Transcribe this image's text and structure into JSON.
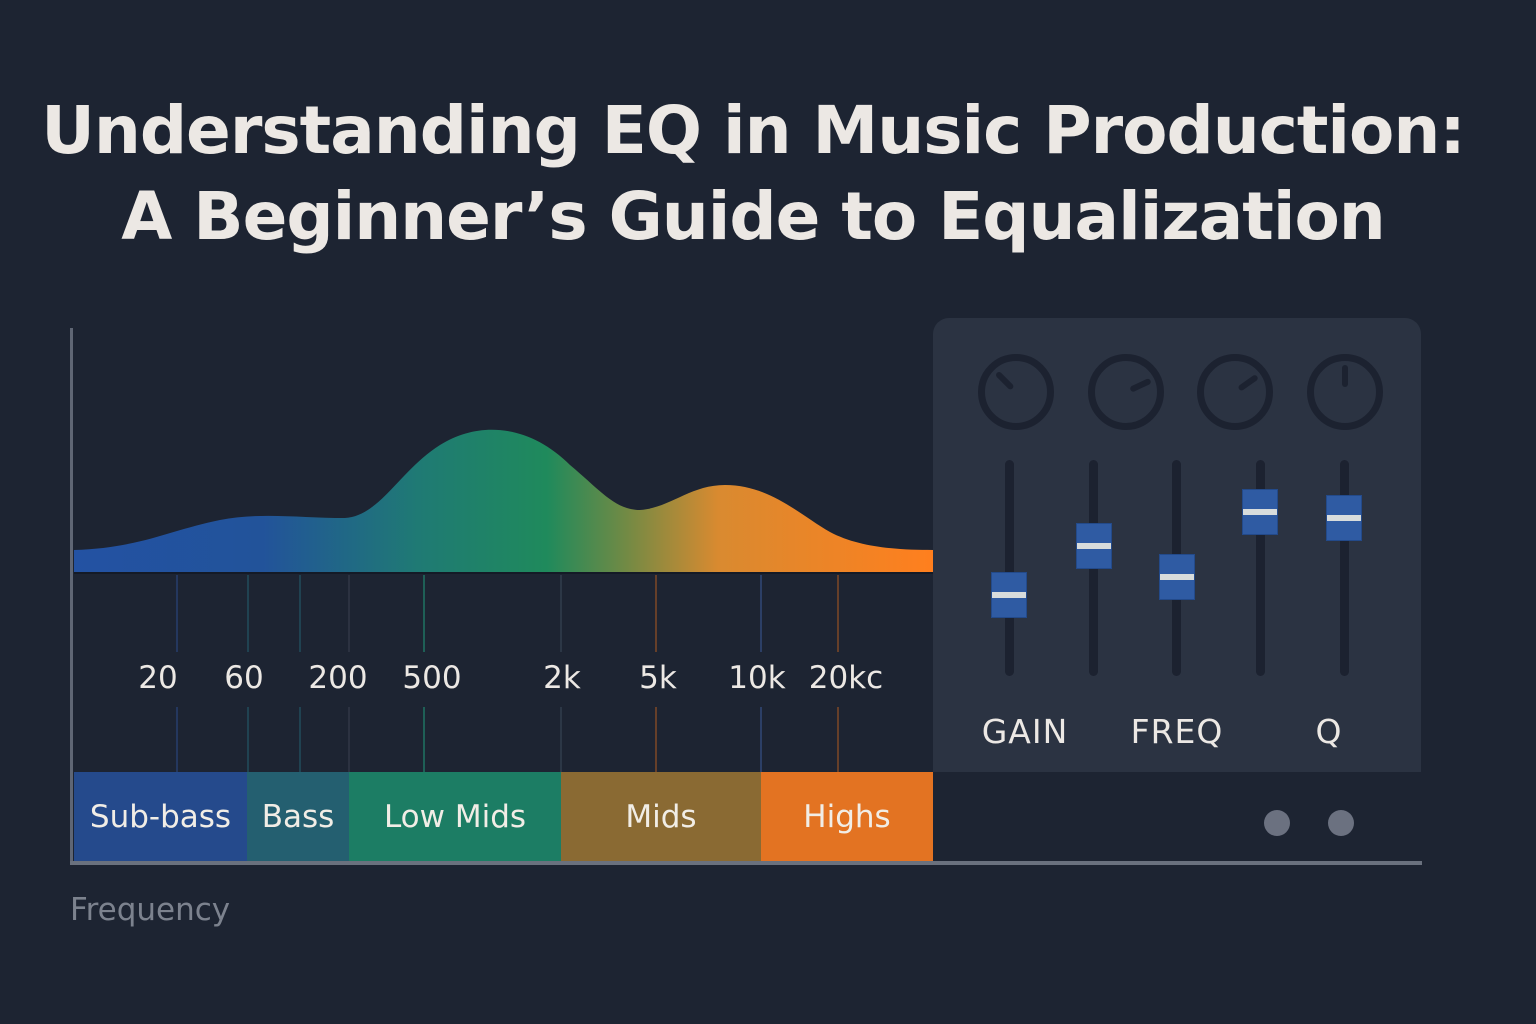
{
  "title": {
    "line1": "Understanding EQ in Music Production:",
    "line2": "A Beginner’s Guide to Equalization"
  },
  "frequency_axis": {
    "label": "Frequency",
    "tick_labels": [
      "20",
      "60",
      "200",
      "500",
      "2k",
      "5k",
      "10k",
      "20kc"
    ],
    "bands": [
      {
        "label": "Sub-bass",
        "color": "#254a8c"
      },
      {
        "label": "Bass",
        "color": "#245f70"
      },
      {
        "label": "Low Mids",
        "color": "#1c7d64"
      },
      {
        "label": "Mids",
        "color": "#8a6a33"
      },
      {
        "label": "Highs",
        "color": "#e37322"
      }
    ]
  },
  "spectrum_colors": [
    "#2352a3",
    "#1f8a60",
    "#ff7f1e"
  ],
  "eq_panel": {
    "knob_angles_deg": [
      -45,
      65,
      55,
      0
    ],
    "slider_levels": [
      0.375,
      0.6,
      0.46,
      0.76,
      0.73
    ],
    "labels": [
      "GAIN",
      "FREQ",
      "Q"
    ],
    "handle_color": "#2f5ba3"
  }
}
